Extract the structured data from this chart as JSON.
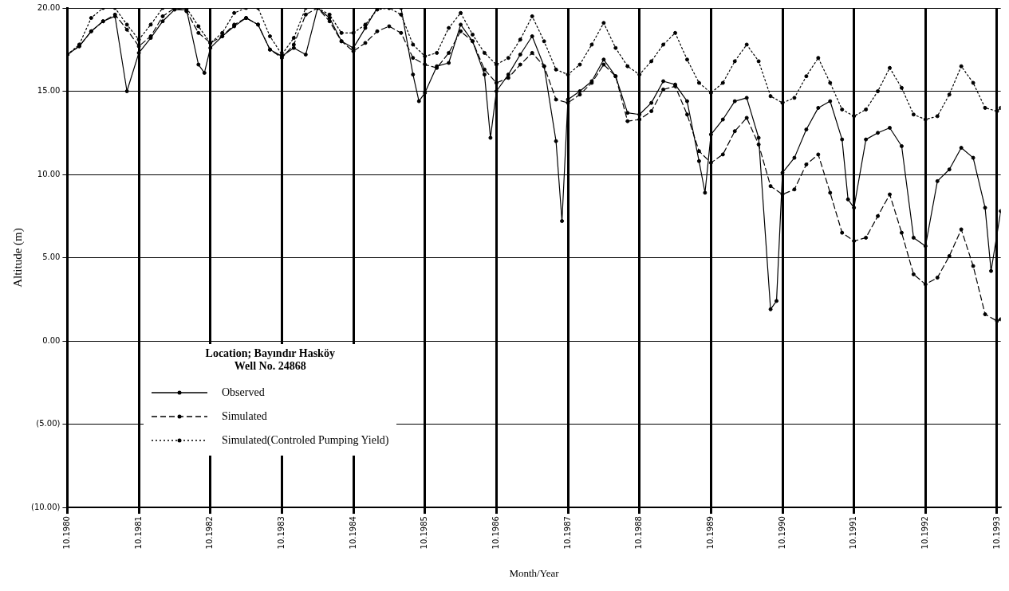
{
  "chart_data": {
    "type": "line",
    "xlabel": "Month/Year",
    "ylabel": "Altitude (m)",
    "legend_title": "Location; Bayındır Hasköy\nWell No. 24868",
    "legend": "bottom left",
    "grid": true,
    "xlim": [
      "1980-10",
      "1993-10-20"
    ],
    "xticks": [
      {
        "value": "1980-10",
        "label": "10.1980"
      },
      {
        "value": "1981-10",
        "label": "10.1981"
      },
      {
        "value": "1982-10",
        "label": "10.1982"
      },
      {
        "value": "1983-10",
        "label": "10.1983"
      },
      {
        "value": "1984-10",
        "label": "10.1984"
      },
      {
        "value": "1985-10",
        "label": "10.1985"
      },
      {
        "value": "1986-10",
        "label": "10.1986"
      },
      {
        "value": "1987-10",
        "label": "10.1987"
      },
      {
        "value": "1988-10",
        "label": "10.1988"
      },
      {
        "value": "1989-10",
        "label": "10.1989"
      },
      {
        "value": "1990-10",
        "label": "10.1990"
      },
      {
        "value": "1991-10",
        "label": "10.1991"
      },
      {
        "value": "1992-10",
        "label": "10.1992"
      },
      {
        "value": "1993-10",
        "label": "10.1993"
      }
    ],
    "ylim": [
      -10,
      20
    ],
    "yticks": [
      {
        "value": 20,
        "label": "20.00"
      },
      {
        "value": 15,
        "label": "15.00"
      },
      {
        "value": 10,
        "label": "10.00"
      },
      {
        "value": 5,
        "label": "5.00"
      },
      {
        "value": 0,
        "label": "0.00"
      },
      {
        "value": -5,
        "label": "(5.00)"
      },
      {
        "value": -10,
        "label": "(10.00)"
      }
    ],
    "x": [
      "1980-10",
      "1980-12",
      "1981-02",
      "1981-04",
      "1981-06",
      "1981-08",
      "1981-10",
      "1981-12",
      "1982-02",
      "1982-04",
      "1982-06",
      "1982-08",
      "1982-10",
      "1982-12",
      "1983-02",
      "1983-04",
      "1983-06",
      "1983-08",
      "1983-10",
      "1983-12",
      "1984-02",
      "1984-04",
      "1984-06",
      "1984-08",
      "1984-10",
      "1984-12",
      "1985-02",
      "1985-04",
      "1985-06",
      "1985-08",
      "1985-10",
      "1985-12",
      "1986-02",
      "1986-04",
      "1986-06",
      "1986-08",
      "1986-10",
      "1986-12",
      "1987-02",
      "1987-04",
      "1987-06",
      "1987-08",
      "1987-10",
      "1987-12",
      "1988-02",
      "1988-04",
      "1988-06",
      "1988-08",
      "1988-10",
      "1988-12",
      "1989-02",
      "1989-04",
      "1989-06",
      "1989-08",
      "1989-10",
      "1989-12",
      "1990-02",
      "1990-04",
      "1990-06",
      "1990-08",
      "1990-10",
      "1990-12",
      "1991-02",
      "1991-04",
      "1991-06",
      "1991-08",
      "1991-10",
      "1991-12",
      "1992-02",
      "1992-04",
      "1992-06",
      "1992-08",
      "1992-10",
      "1992-12",
      "1993-02",
      "1993-04",
      "1993-06",
      "1993-08",
      "1993-10",
      "1993-10-20"
    ],
    "series": [
      {
        "name": "Observed",
        "color": "#000000",
        "line_style": "solid",
        "marker": "circle",
        "x": [
          "1980-10",
          "1980-12",
          "1981-02",
          "1981-04",
          "1981-06",
          "1981-08",
          "1981-10",
          "1981-12",
          "1982-02",
          "1982-04",
          "1982-06",
          "1982-08",
          "1982-09",
          "1982-10",
          "1982-12",
          "1983-02",
          "1983-04",
          "1983-06",
          "1983-08",
          "1983-10",
          "1983-12",
          "1984-02",
          "1984-04",
          "1984-06",
          "1984-08",
          "1984-10",
          "1984-12",
          "1985-02",
          "1985-04",
          "1985-06",
          "1985-08",
          "1985-09",
          "1985-10",
          "1985-12",
          "1986-02",
          "1986-04",
          "1986-06",
          "1986-08",
          "1986-09",
          "1986-10",
          "1986-12",
          "1987-02",
          "1987-04",
          "1987-06",
          "1987-08",
          "1987-09",
          "1987-10",
          "1987-12",
          "1988-02",
          "1988-04",
          "1988-06",
          "1988-08",
          "1988-10",
          "1988-12",
          "1989-02",
          "1989-04",
          "1989-06",
          "1989-08",
          "1989-09",
          "1989-10",
          "1989-12",
          "1990-02",
          "1990-04",
          "1990-06",
          "1990-08",
          "1990-09",
          "1990-10",
          "1990-12",
          "1991-02",
          "1991-04",
          "1991-06",
          "1991-08",
          "1991-09",
          "1991-10",
          "1991-12",
          "1992-02",
          "1992-04",
          "1992-06",
          "1992-08",
          "1992-10",
          "1992-12",
          "1993-02",
          "1993-04",
          "1993-06",
          "1993-08",
          "1993-09",
          "1993-10-20"
        ],
        "values": [
          17.2,
          17.7,
          18.6,
          19.2,
          19.5,
          15.0,
          17.3,
          18.2,
          19.2,
          19.9,
          19.9,
          16.6,
          16.1,
          17.6,
          18.3,
          18.9,
          19.4,
          19.0,
          17.5,
          17.1,
          17.6,
          17.2,
          20,
          19.4,
          18.0,
          17.6,
          18.8,
          20,
          20,
          20,
          16.0,
          14.4,
          14.9,
          16.5,
          16.7,
          19.0,
          18.0,
          16.0,
          12.2,
          15.0,
          16.0,
          17.2,
          18.3,
          16.5,
          12.0,
          7.2,
          14.5,
          15.0,
          15.6,
          16.9,
          15.9,
          13.7,
          13.6,
          14.3,
          15.6,
          15.4,
          14.4,
          10.8,
          8.9,
          12.4,
          13.3,
          14.4,
          14.6,
          12.2,
          1.9,
          2.4,
          10.1,
          11.0,
          12.7,
          14.0,
          14.4,
          12.1,
          8.5,
          8.0,
          12.1,
          12.5,
          12.8,
          11.7,
          6.2,
          5.7,
          9.6,
          10.3,
          11.6,
          11.0,
          8.0,
          4.2,
          7.8
        ]
      },
      {
        "name": "Simulated",
        "color": "#000000",
        "line_style": "dashed",
        "marker": "circle",
        "values": [
          17.2,
          17.7,
          18.6,
          19.2,
          19.6,
          18.7,
          17.7,
          18.3,
          19.5,
          20,
          19.8,
          18.5,
          17.9,
          18.3,
          19.0,
          19.4,
          19.0,
          17.5,
          17.0,
          17.8,
          19.6,
          20,
          19.2,
          18.0,
          17.4,
          17.9,
          18.6,
          18.9,
          18.5,
          17.0,
          16.6,
          16.4,
          17.3,
          18.6,
          18.0,
          16.3,
          15.5,
          15.8,
          16.6,
          17.3,
          16.5,
          14.5,
          14.3,
          14.8,
          15.5,
          16.6,
          15.9,
          13.2,
          13.3,
          13.8,
          15.1,
          15.3,
          13.6,
          11.4,
          10.7,
          11.2,
          12.6,
          13.4,
          11.8,
          9.3,
          8.8,
          9.1,
          10.6,
          11.2,
          8.9,
          6.5,
          6.0,
          6.2,
          7.5,
          8.8,
          6.5,
          4.0,
          3.4,
          3.8,
          5.1,
          6.7,
          4.5,
          1.6,
          1.2,
          1.3
        ]
      },
      {
        "name": "Simulated(Controled Pumping Yield)",
        "color": "#000000",
        "line_style": "dotted",
        "marker": "circle",
        "values": [
          17.2,
          17.8,
          19.4,
          20,
          20,
          19.0,
          18.1,
          19.0,
          20,
          20,
          20,
          18.9,
          17.9,
          18.5,
          19.7,
          20,
          20,
          18.3,
          17.2,
          18.2,
          20,
          20,
          19.6,
          18.5,
          18.5,
          19.0,
          19.9,
          20,
          19.6,
          17.8,
          17.1,
          17.3,
          18.8,
          19.7,
          18.4,
          17.3,
          16.6,
          17.0,
          18.1,
          19.5,
          18.0,
          16.3,
          16.0,
          16.6,
          17.8,
          19.1,
          17.6,
          16.5,
          16.0,
          16.8,
          17.8,
          18.5,
          16.9,
          15.5,
          14.9,
          15.5,
          16.8,
          17.8,
          16.8,
          14.7,
          14.3,
          14.6,
          15.9,
          17.0,
          15.5,
          13.9,
          13.5,
          13.9,
          15.0,
          16.4,
          15.2,
          13.6,
          13.3,
          13.5,
          14.8,
          16.5,
          15.5,
          14.0,
          13.8,
          14.0
        ]
      }
    ]
  }
}
